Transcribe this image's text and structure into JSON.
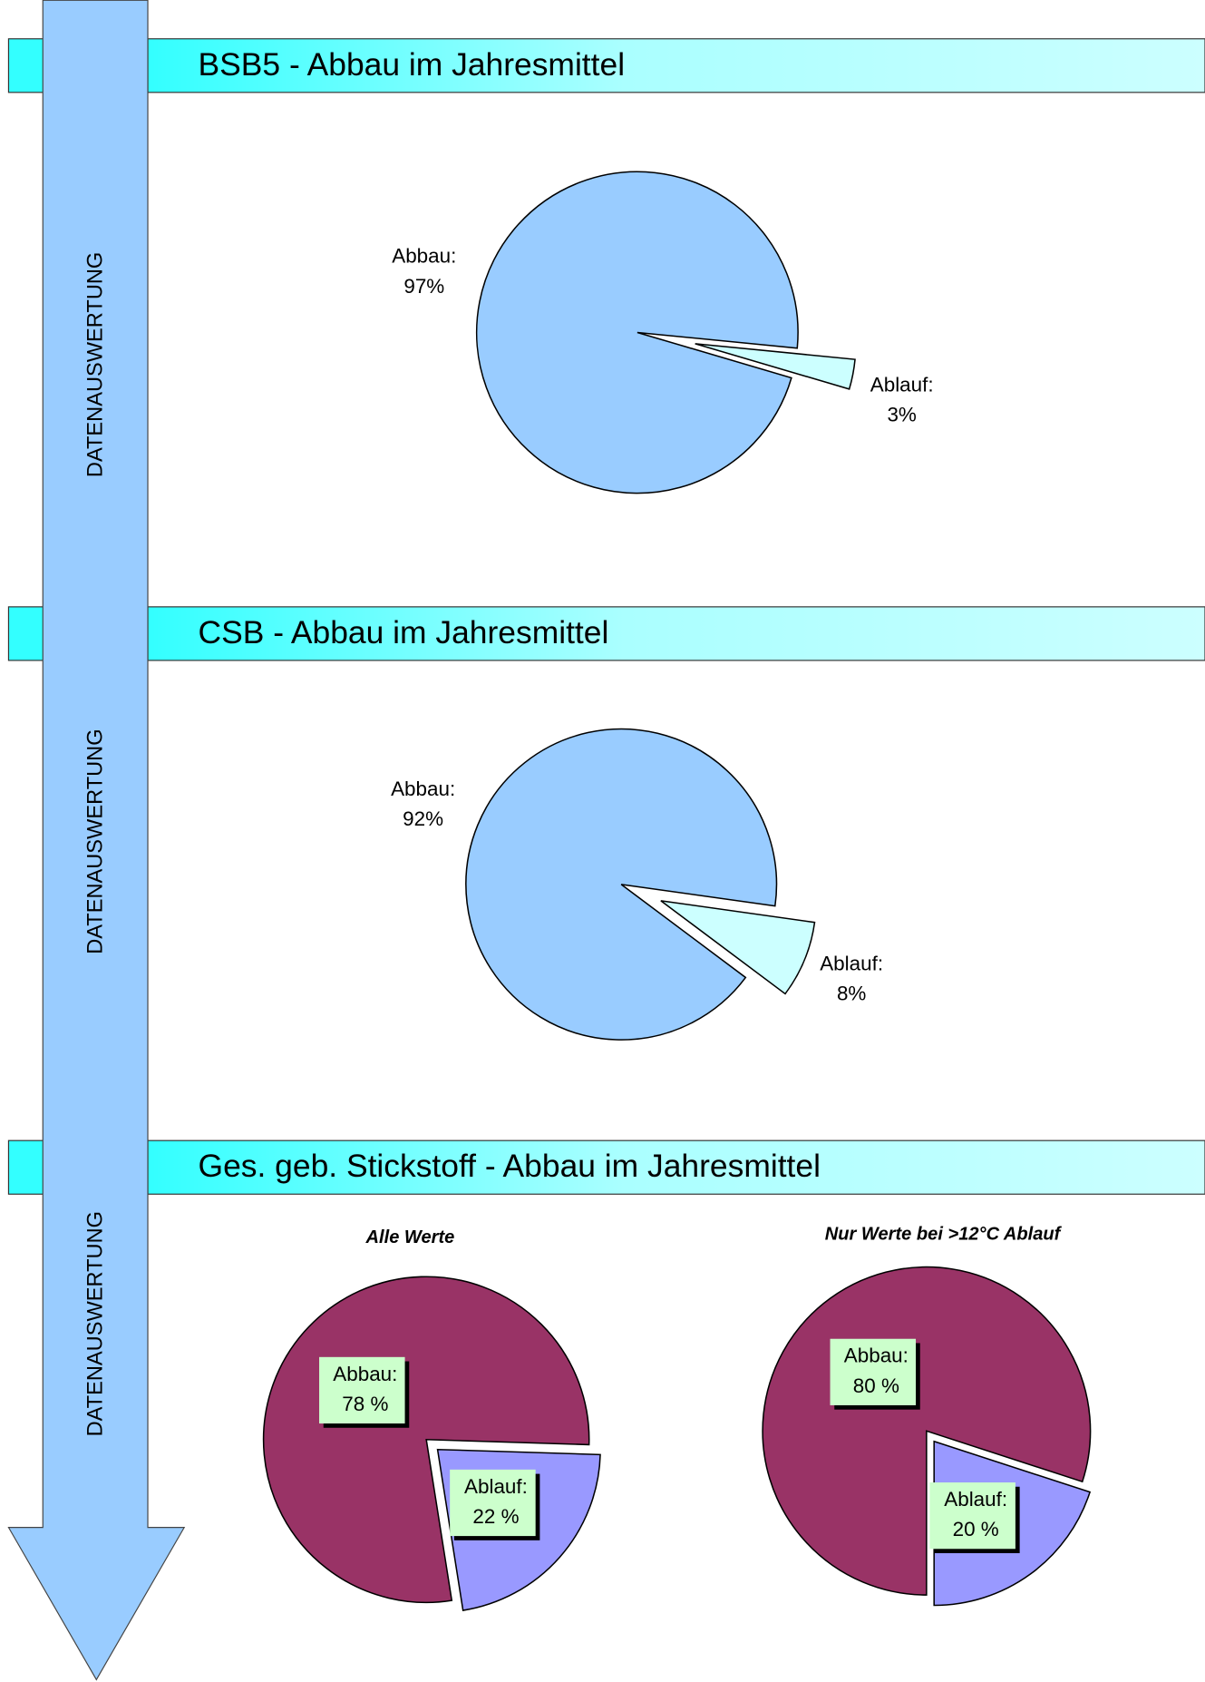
{
  "headers": [
    "BSB5 - Abbau im Jahresmittel",
    "CSB - Abbau im Jahresmittel",
    "Ges. geb. Stickstoff - Abbau im Jahresmittel"
  ],
  "side_labels": [
    "DATENAUSWERTUNG",
    "DATENAUSWERTUNG",
    "DATENAUSWERTUNG"
  ],
  "chart_data": [
    {
      "type": "pie",
      "categories": [
        "Abbau:",
        "Ablauf:"
      ],
      "values": [
        97,
        3
      ],
      "value_labels": [
        "97%",
        "3%"
      ],
      "colors": [
        "#99ccff",
        "#ccffff"
      ],
      "start_angle": 106.4
    },
    {
      "type": "pie",
      "categories": [
        "Abbau:",
        "Ablauf:"
      ],
      "values": [
        92,
        8
      ],
      "value_labels": [
        "92%",
        "8%"
      ],
      "colors": [
        "#99ccff",
        "#ccffff"
      ],
      "start_angle": 126.8
    },
    {
      "type": "pie",
      "subtitle": "Alle Werte",
      "categories": [
        "Abbau:",
        "Ablauf:"
      ],
      "values": [
        78,
        22
      ],
      "value_labels": [
        "78 %",
        "22 %"
      ],
      "colors": [
        "#993366",
        "#9999ff"
      ],
      "start_angle": 171
    },
    {
      "type": "pie",
      "subtitle": "Nur Werte bei >12°C Ablauf",
      "categories": [
        "Abbau:",
        "Ablauf:"
      ],
      "values": [
        80,
        20
      ],
      "value_labels": [
        "80 %",
        "20 %"
      ],
      "colors": [
        "#993366",
        "#9999ff"
      ],
      "start_angle": 180
    }
  ]
}
